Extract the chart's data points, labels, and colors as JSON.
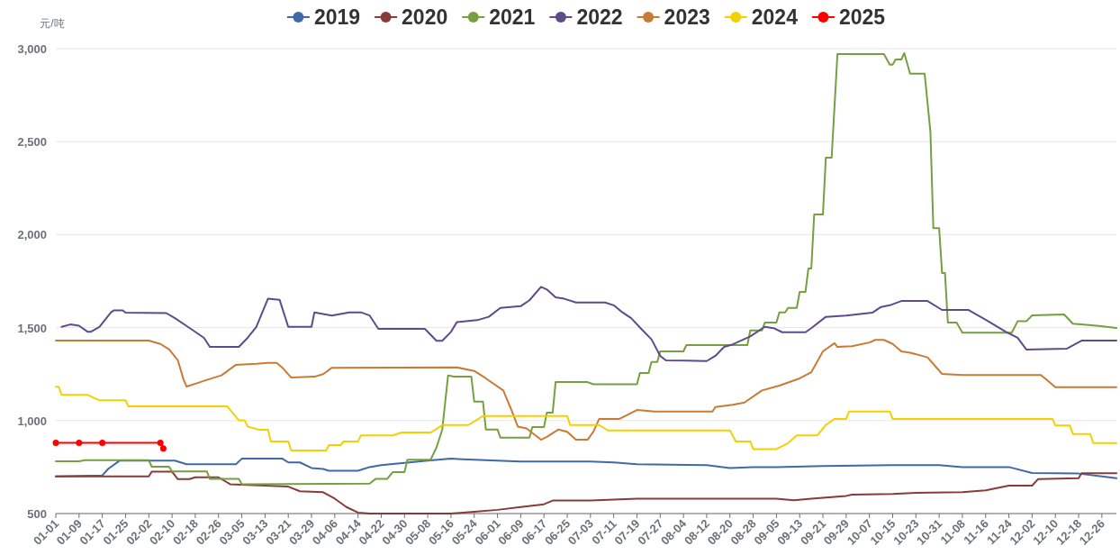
{
  "chart_data": {
    "type": "line",
    "ylabel": "元/吨",
    "xlim": [
      "--01-01",
      "--12-31"
    ],
    "ylim": [
      500,
      3000
    ],
    "yticks": [
      500,
      {
        "value": 1000,
        "label": "1,000"
      },
      {
        "value": 1500,
        "label": "1,500"
      },
      {
        "value": 2000,
        "label": "2,000"
      },
      {
        "value": 2500,
        "label": "2,500"
      },
      {
        "value": 3000,
        "label": "3,000"
      }
    ],
    "xticks": [
      {
        "value": "--01-01",
        "label": "01-01"
      },
      {
        "value": "--01-09",
        "label": "01-09"
      },
      {
        "value": "--01-17",
        "label": "01-17"
      },
      {
        "value": "--01-25",
        "label": "01-25"
      },
      {
        "value": "--02-02",
        "label": "02-02"
      },
      {
        "value": "--02-10",
        "label": "02-10"
      },
      {
        "value": "--02-18",
        "label": "02-18"
      },
      {
        "value": "--02-26",
        "label": "02-26"
      },
      {
        "value": "--03-05",
        "label": "03-05"
      },
      {
        "value": "--03-13",
        "label": "03-13"
      },
      {
        "value": "--03-21",
        "label": "03-21"
      },
      {
        "value": "--03-29",
        "label": "03-29"
      },
      {
        "value": "--04-06",
        "label": "04-06"
      },
      {
        "value": "--04-14",
        "label": "04-14"
      },
      {
        "value": "--04-22",
        "label": "04-22"
      },
      {
        "value": "--04-30",
        "label": "04-30"
      },
      {
        "value": "--05-08",
        "label": "05-08"
      },
      {
        "value": "--05-16",
        "label": "05-16"
      },
      {
        "value": "--05-24",
        "label": "05-24"
      },
      {
        "value": "--06-01",
        "label": "06-01"
      },
      {
        "value": "--06-09",
        "label": "06-09"
      },
      {
        "value": "--06-17",
        "label": "06-17"
      },
      {
        "value": "--06-25",
        "label": "06-25"
      },
      {
        "value": "--07-03",
        "label": "07-03"
      },
      {
        "value": "--07-11",
        "label": "07-11"
      },
      {
        "value": "--07-19",
        "label": "07-19"
      },
      {
        "value": "--07-27",
        "label": "07-27"
      },
      {
        "value": "--08-04",
        "label": "08-04"
      },
      {
        "value": "--08-12",
        "label": "08-12"
      },
      {
        "value": "--08-20",
        "label": "08-20"
      },
      {
        "value": "--08-28",
        "label": "08-28"
      },
      {
        "value": "--09-05",
        "label": "09-05"
      },
      {
        "value": "--09-13",
        "label": "09-13"
      },
      {
        "value": "--09-21",
        "label": "09-21"
      },
      {
        "value": "--09-29",
        "label": "09-29"
      },
      {
        "value": "--10-07",
        "label": "10-07"
      },
      {
        "value": "--10-15",
        "label": "10-15"
      },
      {
        "value": "--10-23",
        "label": "10-23"
      },
      {
        "value": "--10-31",
        "label": "10-31"
      },
      {
        "value": "--11-08",
        "label": "11-08"
      },
      {
        "value": "--11-16",
        "label": "11-16"
      },
      {
        "value": "--11-24",
        "label": "11-24"
      },
      {
        "value": "--12-02",
        "label": "12-02"
      },
      {
        "value": "--12-10",
        "label": "12-10"
      },
      {
        "value": "--12-18",
        "label": "12-18"
      },
      {
        "value": "--12-26",
        "label": "12-26"
      }
    ],
    "grid": "y",
    "legend": "top",
    "line_style": "solid",
    "series": [
      {
        "name": "2019",
        "color": "#3e6aa8",
        "x": [
          "--01-01",
          "--01-17",
          "--01-19",
          "--01-23",
          "--02-11",
          "--02-15",
          "--03-03",
          "--03-05",
          "--03-19",
          "--03-21",
          "--03-25",
          "--03-29",
          "--04-02",
          "--04-04",
          "--04-14",
          "--04-18",
          "--04-22",
          "--05-08",
          "--05-16",
          "--05-24",
          "--06-01",
          "--06-09",
          "--07-03",
          "--07-11",
          "--07-19",
          "--08-12",
          "--08-20",
          "--08-28",
          "--09-05",
          "--09-21",
          "--10-15",
          "--10-31",
          "--11-08",
          "--11-24",
          "--12-02",
          "--12-18",
          "--12-26",
          "--12-31"
        ],
        "values": [
          700,
          705,
          740,
          785,
          785,
          765,
          765,
          795,
          795,
          775,
          775,
          745,
          740,
          730,
          730,
          750,
          760,
          785,
          795,
          790,
          785,
          780,
          780,
          775,
          765,
          760,
          745,
          750,
          750,
          755,
          760,
          760,
          750,
          750,
          718,
          715,
          700,
          690
        ]
      },
      {
        "name": "2020",
        "color": "#8b3a3a",
        "x": [
          "--01-01",
          "--02-02",
          "--02-03",
          "--02-10",
          "--02-12",
          "--02-16",
          "--02-18",
          "--02-26",
          "--03-01",
          "--03-21",
          "--03-25",
          "--04-02",
          "--04-06",
          "--04-10",
          "--04-14",
          "--04-18",
          "--05-16",
          "--05-24",
          "--06-01",
          "--06-09",
          "--06-17",
          "--06-20",
          "--07-03",
          "--07-19",
          "--09-05",
          "--09-11",
          "--09-17",
          "--09-29",
          "--10-01",
          "--10-15",
          "--10-23",
          "--11-08",
          "--11-16",
          "--11-24",
          "--12-02",
          "--12-04",
          "--12-18",
          "--12-19",
          "--12-31"
        ],
        "values": [
          700,
          700,
          725,
          725,
          685,
          685,
          695,
          695,
          658,
          645,
          620,
          615,
          580,
          535,
          505,
          500,
          500,
          510,
          520,
          535,
          550,
          570,
          570,
          580,
          580,
          572,
          580,
          595,
          602,
          605,
          612,
          615,
          625,
          650,
          650,
          685,
          690,
          717,
          717
        ]
      },
      {
        "name": "2021",
        "color": "#76a03f",
        "x": [
          "--01-01",
          "--01-09",
          "--01-11",
          "--02-02",
          "--02-03",
          "--02-09",
          "--02-10",
          "--02-22",
          "--02-23",
          "--03-04",
          "--03-05",
          "--04-18",
          "--04-20",
          "--04-24",
          "--04-26",
          "--04-30",
          "--05-01",
          "--05-09",
          "--05-11",
          "--05-13",
          "--05-15",
          "--05-17",
          "--05-23",
          "--05-24",
          "--05-27",
          "--05-28",
          "--06-01",
          "--06-02",
          "--06-12",
          "--06-13",
          "--06-17",
          "--06-18",
          "--06-20",
          "--06-21",
          "--07-02",
          "--07-04",
          "--07-19",
          "--07-20",
          "--07-23",
          "--07-24",
          "--07-26",
          "--07-27",
          "--08-04",
          "--08-05",
          "--08-26",
          "--08-27",
          "--08-31",
          "--09-01",
          "--09-05",
          "--09-06",
          "--09-08",
          "--09-09",
          "--09-12",
          "--09-13",
          "--09-15",
          "--09-16",
          "--09-17",
          "--09-18",
          "--09-21",
          "--09-22",
          "--09-24",
          "--09-26",
          "--10-12",
          "--10-14",
          "--10-15",
          "--10-16",
          "--10-18",
          "--10-19",
          "--10-21",
          "--10-26",
          "--10-28",
          "--10-29",
          "--10-31",
          "--11-01",
          "--11-02",
          "--11-03",
          "--11-06",
          "--11-08",
          "--11-25",
          "--11-27",
          "--11-30",
          "--12-02",
          "--12-13",
          "--12-16",
          "--12-25",
          "--12-31"
        ],
        "values": [
          781,
          781,
          787,
          787,
          752,
          752,
          726,
          726,
          686,
          686,
          657,
          661,
          686,
          686,
          723,
          723,
          790,
          790,
          855,
          952,
          1243,
          1236,
          1236,
          1102,
          1102,
          952,
          952,
          908,
          908,
          965,
          965,
          1043,
          1043,
          1207,
          1207,
          1195,
          1195,
          1256,
          1256,
          1315,
          1315,
          1372,
          1372,
          1406,
          1406,
          1485,
          1485,
          1527,
          1527,
          1582,
          1582,
          1606,
          1606,
          1692,
          1692,
          1818,
          1818,
          2108,
          2108,
          2414,
          2414,
          2971,
          2971,
          2914,
          2914,
          2942,
          2942,
          2976,
          2866,
          2866,
          2551,
          2035,
          2035,
          1794,
          1794,
          1527,
          1527,
          1473,
          1473,
          1534,
          1534,
          1566,
          1571,
          1521,
          1509,
          1498
        ]
      },
      {
        "name": "2022",
        "color": "#5e4b8b",
        "x": [
          "--01-03",
          "--01-06",
          "--01-09",
          "--01-12",
          "--01-13",
          "--01-16",
          "--01-20",
          "--01-21",
          "--01-24",
          "--01-25",
          "--02-08",
          "--02-11",
          "--02-15",
          "--02-21",
          "--02-23",
          "--03-04",
          "--03-07",
          "--03-10",
          "--03-14",
          "--03-18",
          "--03-21",
          "--03-29",
          "--03-30",
          "--04-05",
          "--04-11",
          "--04-15",
          "--04-18",
          "--04-21",
          "--05-07",
          "--05-11",
          "--05-13",
          "--05-16",
          "--05-18",
          "--05-25",
          "--05-29",
          "--06-02",
          "--06-09",
          "--06-12",
          "--06-16",
          "--06-18",
          "--06-21",
          "--06-24",
          "--06-28",
          "--07-08",
          "--07-11",
          "--07-14",
          "--07-17",
          "--07-21",
          "--07-24",
          "--07-27",
          "--07-29",
          "--08-12",
          "--08-15",
          "--08-18",
          "--08-21",
          "--08-27",
          "--09-01",
          "--09-04",
          "--09-07",
          "--09-15",
          "--09-17",
          "--09-22",
          "--09-29",
          "--10-08",
          "--10-11",
          "--10-14",
          "--10-18",
          "--10-27",
          "--11-01",
          "--11-10",
          "--11-16",
          "--11-23",
          "--11-27",
          "--11-30",
          "--12-14",
          "--12-19",
          "--12-31"
        ],
        "values": [
          1504,
          1517,
          1510,
          1477,
          1477,
          1504,
          1582,
          1593,
          1593,
          1580,
          1578,
          1551,
          1509,
          1445,
          1396,
          1396,
          1445,
          1504,
          1655,
          1650,
          1504,
          1504,
          1582,
          1565,
          1582,
          1582,
          1565,
          1493,
          1493,
          1429,
          1429,
          1477,
          1529,
          1540,
          1558,
          1606,
          1615,
          1647,
          1719,
          1705,
          1663,
          1655,
          1635,
          1635,
          1620,
          1582,
          1551,
          1485,
          1437,
          1348,
          1324,
          1320,
          1348,
          1396,
          1410,
          1453,
          1504,
          1497,
          1475,
          1475,
          1497,
          1558,
          1565,
          1580,
          1611,
          1620,
          1643,
          1643,
          1595,
          1595,
          1542,
          1477,
          1445,
          1382,
          1387,
          1430,
          1430
        ]
      },
      {
        "name": "2023",
        "color": "#c97a35",
        "x": [
          "--01-01",
          "--02-02",
          "--02-06",
          "--02-09",
          "--02-12",
          "--02-14",
          "--02-15",
          "--02-19",
          "--02-22",
          "--02-27",
          "--03-03",
          "--03-10",
          "--03-14",
          "--03-17",
          "--03-19",
          "--03-22",
          "--03-30",
          "--04-02",
          "--04-05",
          "--05-18",
          "--05-24",
          "--05-28",
          "--06-03",
          "--06-06",
          "--06-08",
          "--06-11",
          "--06-16",
          "--06-18",
          "--06-22",
          "--06-25",
          "--06-28",
          "--07-02",
          "--07-04",
          "--07-06",
          "--07-13",
          "--07-19",
          "--07-25",
          "--08-14",
          "--08-15",
          "--08-21",
          "--08-25",
          "--08-31",
          "--09-06",
          "--09-13",
          "--09-17",
          "--09-21",
          "--09-25",
          "--09-26",
          "--10-01",
          "--10-07",
          "--10-09",
          "--10-12",
          "--10-15",
          "--10-18",
          "--10-21",
          "--10-27",
          "--11-01",
          "--11-08",
          "--12-05",
          "--12-07",
          "--12-10",
          "--12-31"
        ],
        "values": [
          1430,
          1430,
          1412,
          1382,
          1324,
          1219,
          1183,
          1203,
          1219,
          1243,
          1300,
          1305,
          1310,
          1310,
          1284,
          1231,
          1236,
          1250,
          1284,
          1286,
          1267,
          1227,
          1162,
          1049,
          968,
          958,
          897,
          912,
          952,
          940,
          897,
          897,
          940,
          1009,
          1009,
          1057,
          1049,
          1049,
          1073,
          1085,
          1097,
          1162,
          1188,
          1227,
          1260,
          1372,
          1416,
          1396,
          1400,
          1420,
          1434,
          1434,
          1412,
          1372,
          1365,
          1340,
          1251,
          1245,
          1245,
          1219,
          1180,
          1180
        ]
      },
      {
        "name": "2024",
        "color": "#f5d000",
        "x": [
          "--01-01",
          "--01-02",
          "--01-03",
          "--01-12",
          "--01-16",
          "--01-25",
          "--01-26",
          "--02-29",
          "--03-04",
          "--03-06",
          "--03-07",
          "--03-11",
          "--03-14",
          "--03-15",
          "--03-21",
          "--03-22",
          "--04-03",
          "--04-04",
          "--04-08",
          "--04-09",
          "--04-14",
          "--04-15",
          "--04-26",
          "--04-29",
          "--05-09",
          "--05-11",
          "--05-13",
          "--05-22",
          "--05-25",
          "--05-27",
          "--06-25",
          "--06-26",
          "--07-06",
          "--07-09",
          "--08-20",
          "--08-22",
          "--08-27",
          "--08-28",
          "--09-05",
          "--09-09",
          "--09-12",
          "--09-19",
          "--09-22",
          "--09-25",
          "--09-29",
          "--09-30",
          "--10-14",
          "--10-15",
          "--12-09",
          "--12-10",
          "--12-15",
          "--12-16",
          "--12-22",
          "--12-23",
          "--12-31"
        ],
        "values": [
          1182,
          1182,
          1138,
          1138,
          1109,
          1109,
          1076,
          1076,
          1001,
          1001,
          968,
          951,
          951,
          888,
          888,
          839,
          839,
          868,
          868,
          888,
          888,
          920,
          920,
          936,
          936,
          955,
          976,
          976,
          1004,
          1025,
          1025,
          976,
          976,
          947,
          947,
          888,
          888,
          847,
          847,
          879,
          920,
          920,
          976,
          1009,
          1009,
          1049,
          1049,
          1009,
          1009,
          973,
          973,
          928,
          928,
          879,
          879
        ]
      },
      {
        "name": "2025",
        "color": "#ff0000",
        "marker": "circle",
        "x": [
          "--01-01",
          "--01-09",
          "--01-17",
          "--02-06",
          "--02-07"
        ],
        "values": [
          880,
          880,
          880,
          880,
          850
        ]
      }
    ]
  }
}
